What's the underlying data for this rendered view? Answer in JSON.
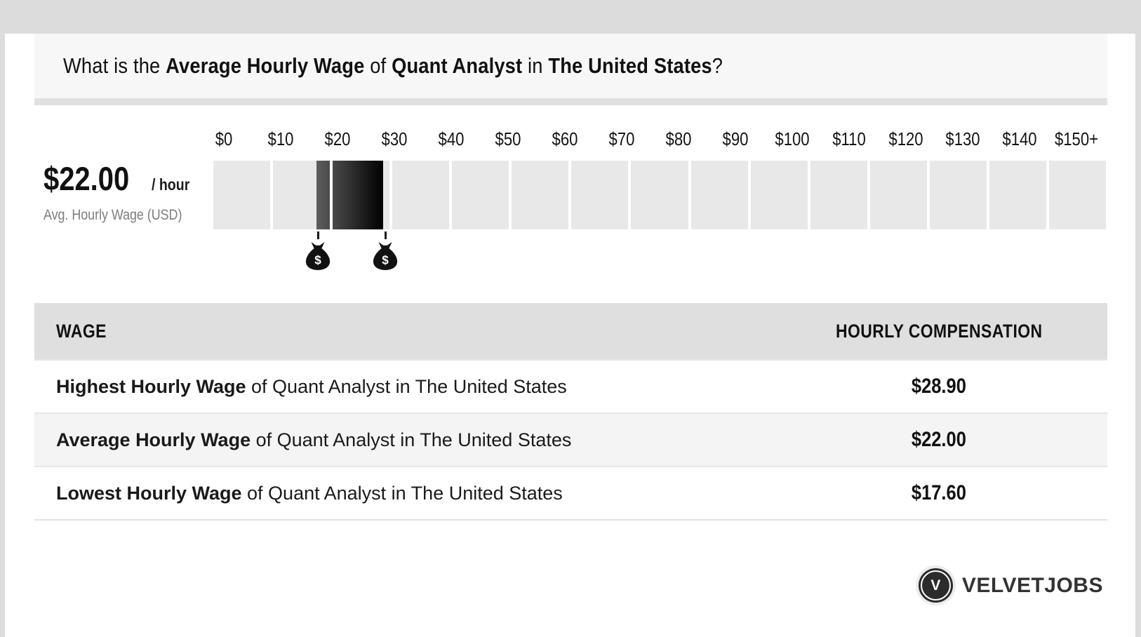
{
  "title": {
    "pre": "What is the ",
    "bold1": "Average Hourly Wage",
    "mid1": " of ",
    "bold2": "Quant Analyst",
    "mid2": " in ",
    "bold3": "The United States",
    "post": "?"
  },
  "wage_panel": {
    "amount": "$22.00",
    "per": "/ hour",
    "caption": "Avg. Hourly Wage (USD)"
  },
  "chart_data": {
    "type": "bar",
    "title": "What is the Average Hourly Wage of Quant Analyst in The United States?",
    "axis_min": 0,
    "axis_max": 150,
    "segment_size": 10,
    "scale_labels": [
      "$0",
      "$10",
      "$20",
      "$30",
      "$40",
      "$50",
      "$60",
      "$70",
      "$80",
      "$90",
      "$100",
      "$110",
      "$120",
      "$130",
      "$140",
      "$150+"
    ],
    "highlight_low": 17.6,
    "highlight_high": 28.9,
    "average_hourly_wage": 22.0,
    "highest_hourly_wage": 28.9,
    "lowest_hourly_wage": 17.6,
    "segment_color": "#e8e8e8",
    "fill_color_start": "#5e5e5e",
    "fill_color_end": "#000000",
    "marker_icon": "money-bag",
    "legend": "off",
    "grid": "off"
  },
  "table": {
    "headers": [
      "WAGE",
      "HOURLY COMPENSATION"
    ],
    "rows": [
      {
        "lead": "Highest Hourly Wage",
        "rest": " of Quant Analyst in The United States",
        "value": "$28.90"
      },
      {
        "lead": "Average Hourly Wage",
        "rest": " of Quant Analyst in The United States",
        "value": "$22.00"
      },
      {
        "lead": "Lowest Hourly Wage",
        "rest": " of Quant Analyst in The United States",
        "value": "$17.60"
      }
    ]
  },
  "footer": {
    "logo_letter": "V",
    "brand": "VELVETJOBS"
  }
}
